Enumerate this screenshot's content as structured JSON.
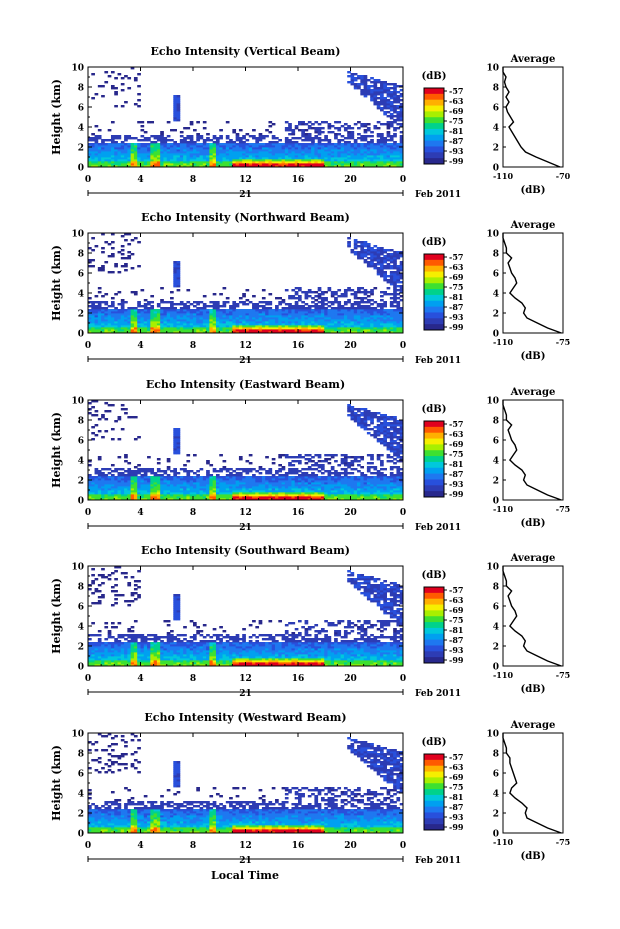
{
  "chart_data": {
    "type": "heatmap",
    "date_label": "Feb 2011",
    "day_label": "21",
    "xlabel_bottom": "Local Time",
    "ylabel": "Height (km)",
    "x_ticks": [
      "0",
      "4",
      "8",
      "12",
      "16",
      "20",
      "0"
    ],
    "xlim": [
      0,
      24
    ],
    "y_ticks": [
      "0",
      "2",
      "4",
      "6",
      "8",
      "10"
    ],
    "ylim": [
      0,
      10
    ],
    "colorbar": {
      "title": "(dB)",
      "ticks": [
        "-57",
        "-63",
        "-69",
        "-75",
        "-81",
        "-87",
        "-93",
        "-99"
      ],
      "colors": [
        "#e0001e",
        "#ff5a00",
        "#ffb000",
        "#f6ef00",
        "#a8ef00",
        "#3ee030",
        "#00d28c",
        "#00c8dc",
        "#00a0f0",
        "#1e78f0",
        "#2850dc",
        "#2d3cb4",
        "#28288c"
      ]
    },
    "panels": [
      {
        "title": "Echo Intensity (Vertical Beam)",
        "avg_title": "Average",
        "avg_xlabel": "(dB)",
        "avg_xticks": [
          "-110",
          "-70"
        ],
        "avg_xlim": [
          -110,
          -70
        ],
        "avg_profile": [
          {
            "h": 0,
            "db": -72
          },
          {
            "h": 0.5,
            "db": -80
          },
          {
            "h": 1,
            "db": -88
          },
          {
            "h": 1.5,
            "db": -95
          },
          {
            "h": 2,
            "db": -98
          },
          {
            "h": 2.5,
            "db": -100
          },
          {
            "h": 3,
            "db": -102
          },
          {
            "h": 3.5,
            "db": -104
          },
          {
            "h": 4,
            "db": -106
          },
          {
            "h": 4.5,
            "db": -103
          },
          {
            "h": 5,
            "db": -105
          },
          {
            "h": 5.5,
            "db": -107
          },
          {
            "h": 6,
            "db": -108
          },
          {
            "h": 6.5,
            "db": -106
          },
          {
            "h": 7,
            "db": -108
          },
          {
            "h": 7.5,
            "db": -106
          },
          {
            "h": 8,
            "db": -108
          },
          {
            "h": 8.5,
            "db": -109
          },
          {
            "h": 9,
            "db": -108
          },
          {
            "h": 9.5,
            "db": -110
          },
          {
            "h": 10,
            "db": -110
          }
        ]
      },
      {
        "title": "Echo Intensity (Northward Beam)",
        "avg_title": "Average",
        "avg_xlabel": "(dB)",
        "avg_xticks": [
          "-110",
          "-75"
        ],
        "avg_xlim": [
          -110,
          -75
        ],
        "avg_profile": [
          {
            "h": 0,
            "db": -76
          },
          {
            "h": 0.5,
            "db": -84
          },
          {
            "h": 1,
            "db": -90
          },
          {
            "h": 1.5,
            "db": -96
          },
          {
            "h": 2,
            "db": -98
          },
          {
            "h": 2.5,
            "db": -97
          },
          {
            "h": 3,
            "db": -99
          },
          {
            "h": 3.5,
            "db": -103
          },
          {
            "h": 4,
            "db": -106
          },
          {
            "h": 4.5,
            "db": -104
          },
          {
            "h": 5,
            "db": -102
          },
          {
            "h": 5.5,
            "db": -103
          },
          {
            "h": 6,
            "db": -105
          },
          {
            "h": 6.5,
            "db": -106
          },
          {
            "h": 7,
            "db": -107
          },
          {
            "h": 7.5,
            "db": -105
          },
          {
            "h": 8,
            "db": -108
          },
          {
            "h": 8.5,
            "db": -108
          },
          {
            "h": 9,
            "db": -109
          },
          {
            "h": 9.5,
            "db": -110
          },
          {
            "h": 10,
            "db": -110
          }
        ]
      },
      {
        "title": "Echo Intensity (Eastward Beam)",
        "avg_title": "Average",
        "avg_xlabel": "(dB)",
        "avg_xticks": [
          "-110",
          "-75"
        ],
        "avg_xlim": [
          -110,
          -75
        ],
        "avg_profile": [
          {
            "h": 0,
            "db": -76
          },
          {
            "h": 0.5,
            "db": -84
          },
          {
            "h": 1,
            "db": -90
          },
          {
            "h": 1.5,
            "db": -96
          },
          {
            "h": 2,
            "db": -98
          },
          {
            "h": 2.5,
            "db": -97
          },
          {
            "h": 3,
            "db": -99
          },
          {
            "h": 3.5,
            "db": -103
          },
          {
            "h": 4,
            "db": -106
          },
          {
            "h": 4.5,
            "db": -104
          },
          {
            "h": 5,
            "db": -102
          },
          {
            "h": 5.5,
            "db": -103
          },
          {
            "h": 6,
            "db": -105
          },
          {
            "h": 6.5,
            "db": -106
          },
          {
            "h": 7,
            "db": -107
          },
          {
            "h": 7.5,
            "db": -105
          },
          {
            "h": 8,
            "db": -108
          },
          {
            "h": 8.5,
            "db": -108
          },
          {
            "h": 9,
            "db": -109
          },
          {
            "h": 9.5,
            "db": -110
          },
          {
            "h": 10,
            "db": -110
          }
        ]
      },
      {
        "title": "Echo Intensity (Southward Beam)",
        "avg_title": "Average",
        "avg_xlabel": "(dB)",
        "avg_xticks": [
          "-110",
          "-75"
        ],
        "avg_xlim": [
          -110,
          -75
        ],
        "avg_profile": [
          {
            "h": 0,
            "db": -76
          },
          {
            "h": 0.5,
            "db": -84
          },
          {
            "h": 1,
            "db": -90
          },
          {
            "h": 1.5,
            "db": -96
          },
          {
            "h": 2,
            "db": -98
          },
          {
            "h": 2.5,
            "db": -97
          },
          {
            "h": 3,
            "db": -99
          },
          {
            "h": 3.5,
            "db": -103
          },
          {
            "h": 4,
            "db": -106
          },
          {
            "h": 4.5,
            "db": -104
          },
          {
            "h": 5,
            "db": -102
          },
          {
            "h": 5.5,
            "db": -103
          },
          {
            "h": 6,
            "db": -105
          },
          {
            "h": 6.5,
            "db": -106
          },
          {
            "h": 7,
            "db": -107
          },
          {
            "h": 7.5,
            "db": -105
          },
          {
            "h": 8,
            "db": -108
          },
          {
            "h": 8.5,
            "db": -108
          },
          {
            "h": 9,
            "db": -109
          },
          {
            "h": 9.5,
            "db": -110
          },
          {
            "h": 10,
            "db": -110
          }
        ]
      },
      {
        "title": "Echo Intensity (Westward Beam)",
        "avg_title": "Average",
        "avg_xlabel": "(dB)",
        "avg_xticks": [
          "-110",
          "-75"
        ],
        "avg_xlim": [
          -110,
          -75
        ],
        "avg_profile": [
          {
            "h": 0,
            "db": -76
          },
          {
            "h": 0.5,
            "db": -84
          },
          {
            "h": 1,
            "db": -90
          },
          {
            "h": 1.5,
            "db": -96
          },
          {
            "h": 2,
            "db": -97
          },
          {
            "h": 2.5,
            "db": -96
          },
          {
            "h": 3,
            "db": -99
          },
          {
            "h": 3.5,
            "db": -103
          },
          {
            "h": 4,
            "db": -106
          },
          {
            "h": 4.5,
            "db": -105
          },
          {
            "h": 5,
            "db": -102
          },
          {
            "h": 5.5,
            "db": -103
          },
          {
            "h": 6,
            "db": -104
          },
          {
            "h": 6.5,
            "db": -105
          },
          {
            "h": 7,
            "db": -106
          },
          {
            "h": 7.5,
            "db": -106
          },
          {
            "h": 8,
            "db": -108
          },
          {
            "h": 8.5,
            "db": -108
          },
          {
            "h": 9,
            "db": -109
          },
          {
            "h": 9.5,
            "db": -110
          },
          {
            "h": 10,
            "db": -110
          }
        ]
      }
    ]
  }
}
